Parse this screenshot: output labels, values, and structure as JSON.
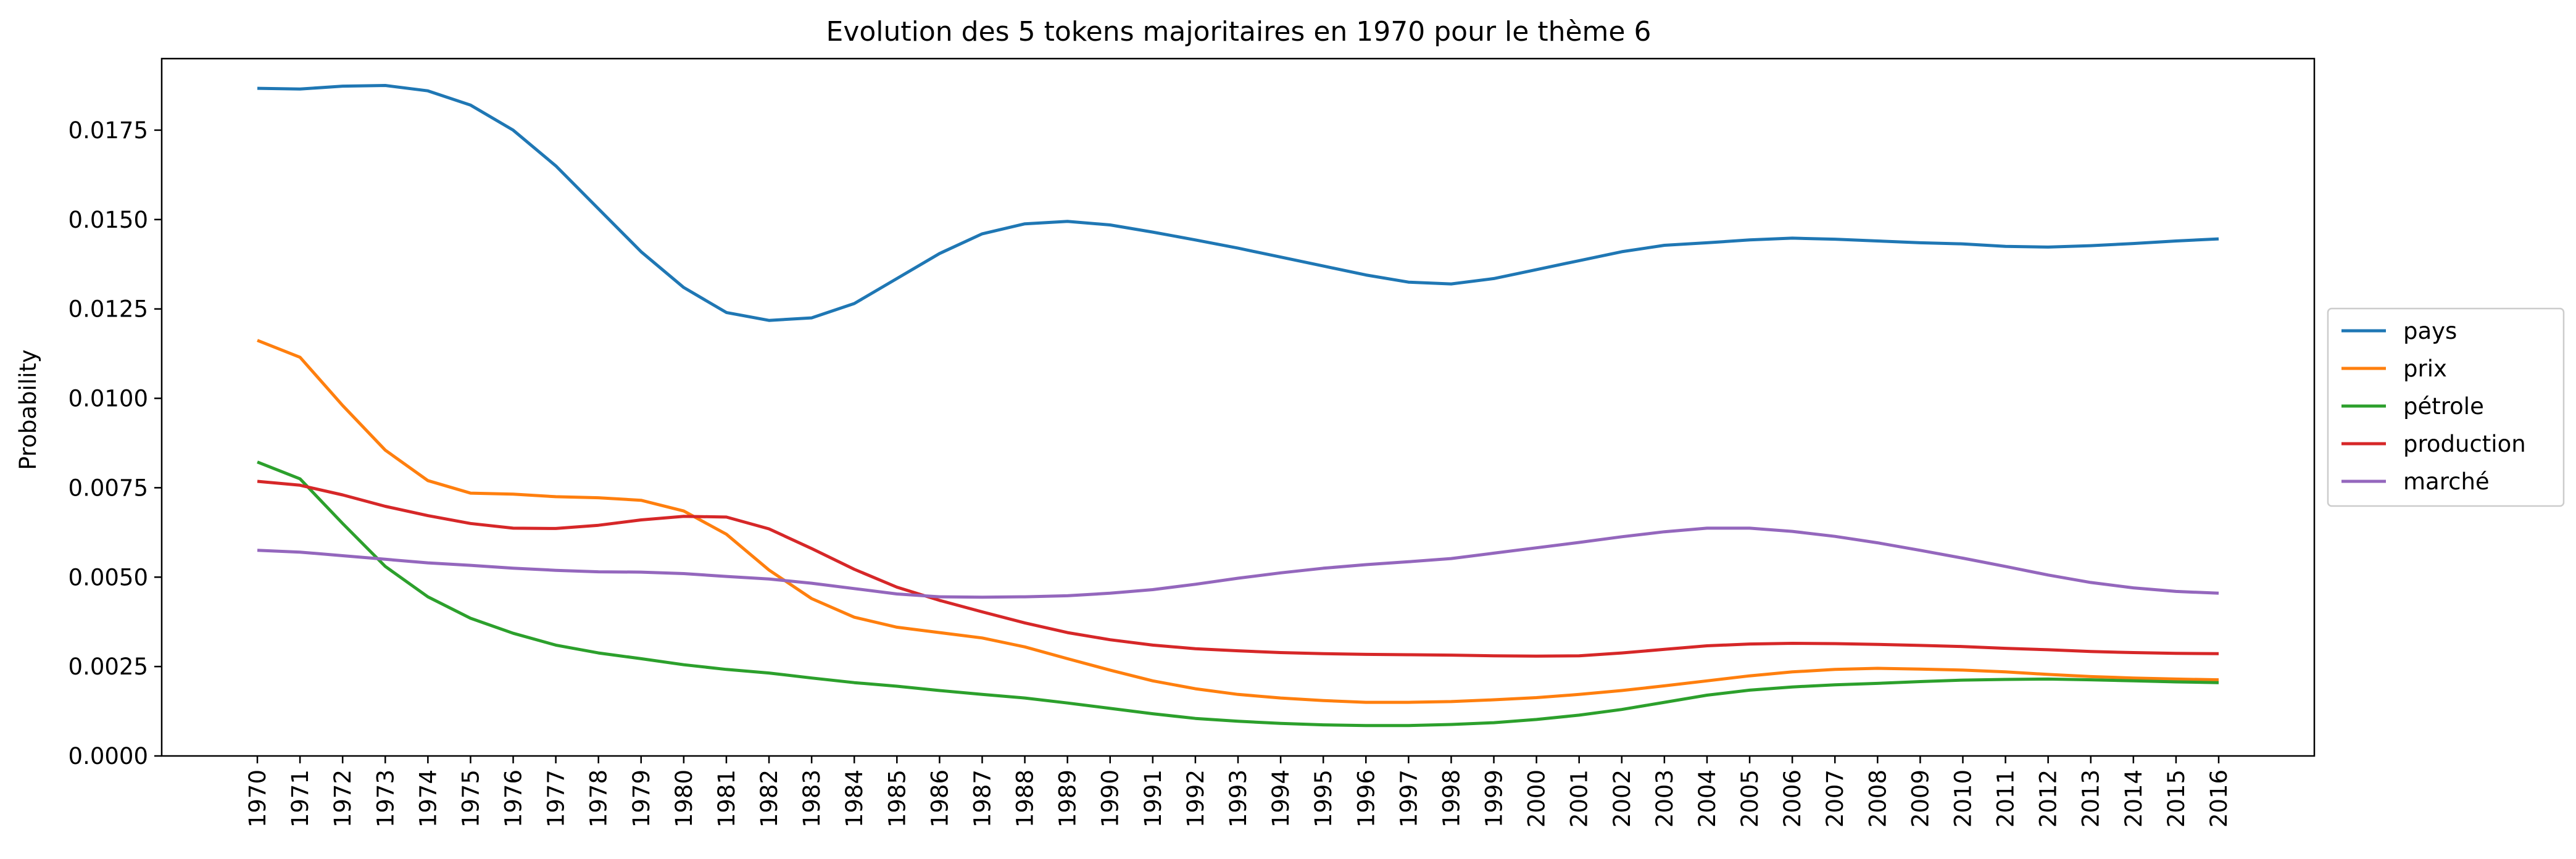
{
  "chart_data": {
    "type": "line",
    "title": "Evolution des 5 tokens majoritaires en 1970 pour le thème 6",
    "xlabel": "",
    "ylabel": "Probability",
    "ylim": [
      0.0,
      0.0195
    ],
    "x": [
      "1970",
      "1971",
      "1972",
      "1973",
      "1974",
      "1975",
      "1976",
      "1977",
      "1978",
      "1979",
      "1980",
      "1981",
      "1982",
      "1983",
      "1984",
      "1985",
      "1986",
      "1987",
      "1988",
      "1989",
      "1990",
      "1991",
      "1992",
      "1993",
      "1994",
      "1995",
      "1996",
      "1997",
      "1998",
      "1999",
      "2000",
      "2001",
      "2002",
      "2003",
      "2004",
      "2005",
      "2006",
      "2007",
      "2008",
      "2009",
      "2010",
      "2011",
      "2012",
      "2013",
      "2014",
      "2015",
      "2016"
    ],
    "yticks": [
      "0.0000",
      "0.0025",
      "0.0050",
      "0.0075",
      "0.0100",
      "0.0125",
      "0.0150",
      "0.0175"
    ],
    "legend_position": "center-right",
    "series": [
      {
        "name": "pays",
        "color": "#1f77b4",
        "values": [
          0.01867,
          0.01865,
          0.01873,
          0.01875,
          0.0186,
          0.0182,
          0.0175,
          0.0165,
          0.0153,
          0.0141,
          0.0131,
          0.0124,
          0.01218,
          0.01225,
          0.01265,
          0.01335,
          0.01405,
          0.0146,
          0.01488,
          0.01495,
          0.01485,
          0.01465,
          0.01443,
          0.0142,
          0.01395,
          0.0137,
          0.01345,
          0.01325,
          0.0132,
          0.01335,
          0.0136,
          0.01385,
          0.0141,
          0.01428,
          0.01435,
          0.01443,
          0.01448,
          0.01445,
          0.0144,
          0.01435,
          0.01432,
          0.01425,
          0.01423,
          0.01427,
          0.01433,
          0.0144,
          0.01446
        ]
      },
      {
        "name": "prix",
        "color": "#ff7f0e",
        "values": [
          0.01162,
          0.01115,
          0.0098,
          0.00855,
          0.0077,
          0.00735,
          0.00732,
          0.00725,
          0.00722,
          0.00715,
          0.00685,
          0.0062,
          0.0052,
          0.0044,
          0.00388,
          0.0036,
          0.00345,
          0.0033,
          0.00305,
          0.00272,
          0.0024,
          0.0021,
          0.00188,
          0.00172,
          0.00162,
          0.00155,
          0.0015,
          0.0015,
          0.00152,
          0.00157,
          0.00163,
          0.00172,
          0.00183,
          0.00196,
          0.0021,
          0.00224,
          0.00235,
          0.00242,
          0.00245,
          0.00243,
          0.0024,
          0.00235,
          0.00228,
          0.00222,
          0.00218,
          0.00215,
          0.00213
        ]
      },
      {
        "name": "pétrole",
        "color": "#2ca02c",
        "values": [
          0.00822,
          0.00775,
          0.0065,
          0.0053,
          0.00445,
          0.00385,
          0.00343,
          0.0031,
          0.00288,
          0.00272,
          0.00255,
          0.00242,
          0.00232,
          0.00218,
          0.00205,
          0.00195,
          0.00183,
          0.00172,
          0.00162,
          0.00148,
          0.00133,
          0.00118,
          0.00105,
          0.00097,
          0.00091,
          0.00087,
          0.00085,
          0.00085,
          0.00088,
          0.00093,
          0.00102,
          0.00114,
          0.0013,
          0.0015,
          0.0017,
          0.00184,
          0.00193,
          0.00199,
          0.00203,
          0.00208,
          0.00212,
          0.00214,
          0.00215,
          0.00213,
          0.0021,
          0.00207,
          0.00205
        ]
      },
      {
        "name": "production",
        "color": "#d62728",
        "values": [
          0.00768,
          0.00757,
          0.0073,
          0.00698,
          0.00672,
          0.0065,
          0.00637,
          0.00636,
          0.00645,
          0.0066,
          0.0067,
          0.00668,
          0.00635,
          0.0058,
          0.00522,
          0.00472,
          0.00435,
          0.00403,
          0.00372,
          0.00345,
          0.00325,
          0.0031,
          0.003,
          0.00294,
          0.00289,
          0.00286,
          0.00284,
          0.00283,
          0.00282,
          0.0028,
          0.00279,
          0.0028,
          0.00288,
          0.00298,
          0.00308,
          0.00313,
          0.00315,
          0.00314,
          0.00312,
          0.00309,
          0.00306,
          0.00301,
          0.00297,
          0.00292,
          0.00289,
          0.00287,
          0.00286
        ]
      },
      {
        "name": "marché",
        "color": "#9467bd",
        "values": [
          0.00575,
          0.0057,
          0.0056,
          0.0055,
          0.0054,
          0.00533,
          0.00525,
          0.00519,
          0.00515,
          0.00514,
          0.0051,
          0.00502,
          0.00495,
          0.00483,
          0.00468,
          0.00453,
          0.00445,
          0.00444,
          0.00445,
          0.00448,
          0.00455,
          0.00465,
          0.0048,
          0.00497,
          0.00512,
          0.00525,
          0.00535,
          0.00543,
          0.00552,
          0.00567,
          0.00582,
          0.00597,
          0.00613,
          0.00627,
          0.00637,
          0.00637,
          0.00628,
          0.00614,
          0.00596,
          0.00575,
          0.00553,
          0.0053,
          0.00506,
          0.00485,
          0.0047,
          0.0046,
          0.00455
        ]
      }
    ]
  }
}
